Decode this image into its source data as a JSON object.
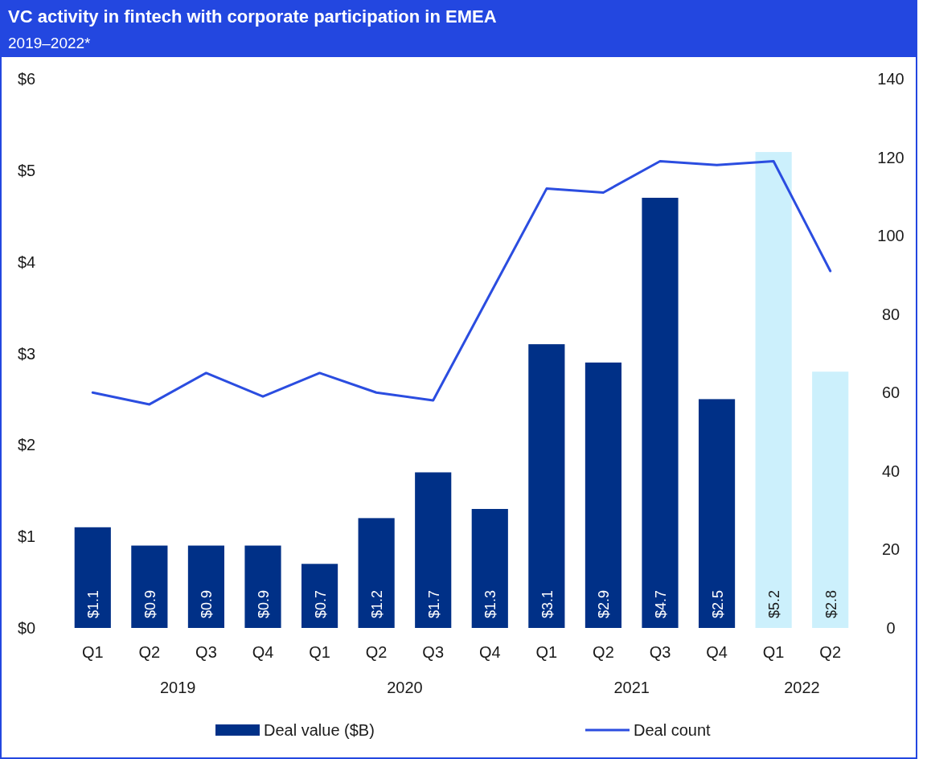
{
  "chart_data": {
    "type": "bar",
    "title": "VC activity in fintech with corporate participation in EMEA",
    "subtitle": "2019–2022*",
    "categories": [
      "Q1",
      "Q2",
      "Q3",
      "Q4",
      "Q1",
      "Q2",
      "Q3",
      "Q4",
      "Q1",
      "Q2",
      "Q3",
      "Q4",
      "Q1",
      "Q2"
    ],
    "annotations": [
      "2019",
      "2020",
      "2021",
      "2022"
    ],
    "series": [
      {
        "name": "Deal value ($B)",
        "color": "#003087",
        "colors": [
          "#003087",
          "#003087",
          "#003087",
          "#003087",
          "#003087",
          "#003087",
          "#003087",
          "#003087",
          "#003087",
          "#003087",
          "#003087",
          "#003087",
          "#ccf0fc",
          "#ccf0fc"
        ],
        "values": [
          1.1,
          0.9,
          0.9,
          0.9,
          0.7,
          1.2,
          1.7,
          1.3,
          3.1,
          2.9,
          4.7,
          2.5,
          5.2,
          2.8
        ],
        "value_labels": [
          "$1.1",
          "$0.9",
          "$0.9",
          "$0.9",
          "$0.7",
          "$1.2",
          "$1.7",
          "$1.3",
          "$3.1",
          "$2.9",
          "$4.7",
          "$2.5",
          "$5.2",
          "$2.8"
        ]
      },
      {
        "name": "Deal count",
        "type": "line",
        "axis": "y2",
        "color": "#2b4de0",
        "values": [
          60,
          57,
          65,
          59,
          65,
          60,
          58,
          85,
          112,
          111,
          119,
          118,
          119,
          91
        ]
      }
    ],
    "ylim": [
      0,
      6
    ],
    "yticks": [
      {
        "value": 0,
        "label": "$0"
      },
      {
        "value": 1,
        "label": "$1"
      },
      {
        "value": 2,
        "label": "$2"
      },
      {
        "value": 3,
        "label": "$3"
      },
      {
        "value": 4,
        "label": "$4"
      },
      {
        "value": 5,
        "label": "$5"
      },
      {
        "value": 6,
        "label": "$6"
      }
    ],
    "y2lim": [
      0,
      140
    ],
    "y2ticks": [
      0,
      20,
      40,
      60,
      80,
      100,
      120,
      140
    ],
    "legend": "bottom",
    "grid": false,
    "marker": "none",
    "line_style": "solid"
  }
}
